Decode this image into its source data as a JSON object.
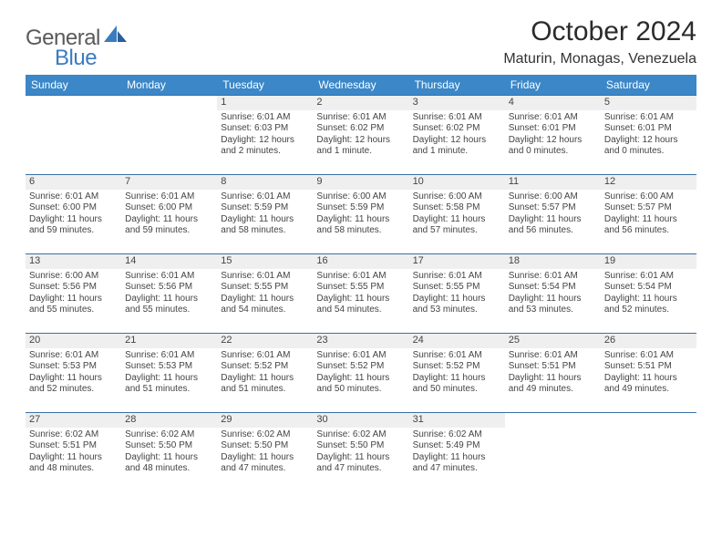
{
  "logo": {
    "text1": "General",
    "text2": "Blue"
  },
  "title": "October 2024",
  "subtitle": "Maturin, Monagas, Venezuela",
  "colors": {
    "header_bg": "#3b87c8",
    "header_fg": "#ffffff",
    "week_border": "#3b6fa5",
    "daynum_bg": "#efefef",
    "text": "#444444",
    "logo_gray": "#5a5a5a",
    "logo_blue": "#3b7bbf"
  },
  "dow": [
    "Sunday",
    "Monday",
    "Tuesday",
    "Wednesday",
    "Thursday",
    "Friday",
    "Saturday"
  ],
  "weeks": [
    [
      {
        "n": "",
        "sr": "",
        "ss": "",
        "d1": "",
        "d2": ""
      },
      {
        "n": "",
        "sr": "",
        "ss": "",
        "d1": "",
        "d2": ""
      },
      {
        "n": "1",
        "sr": "Sunrise: 6:01 AM",
        "ss": "Sunset: 6:03 PM",
        "d1": "Daylight: 12 hours",
        "d2": "and 2 minutes."
      },
      {
        "n": "2",
        "sr": "Sunrise: 6:01 AM",
        "ss": "Sunset: 6:02 PM",
        "d1": "Daylight: 12 hours",
        "d2": "and 1 minute."
      },
      {
        "n": "3",
        "sr": "Sunrise: 6:01 AM",
        "ss": "Sunset: 6:02 PM",
        "d1": "Daylight: 12 hours",
        "d2": "and 1 minute."
      },
      {
        "n": "4",
        "sr": "Sunrise: 6:01 AM",
        "ss": "Sunset: 6:01 PM",
        "d1": "Daylight: 12 hours",
        "d2": "and 0 minutes."
      },
      {
        "n": "5",
        "sr": "Sunrise: 6:01 AM",
        "ss": "Sunset: 6:01 PM",
        "d1": "Daylight: 12 hours",
        "d2": "and 0 minutes."
      }
    ],
    [
      {
        "n": "6",
        "sr": "Sunrise: 6:01 AM",
        "ss": "Sunset: 6:00 PM",
        "d1": "Daylight: 11 hours",
        "d2": "and 59 minutes."
      },
      {
        "n": "7",
        "sr": "Sunrise: 6:01 AM",
        "ss": "Sunset: 6:00 PM",
        "d1": "Daylight: 11 hours",
        "d2": "and 59 minutes."
      },
      {
        "n": "8",
        "sr": "Sunrise: 6:01 AM",
        "ss": "Sunset: 5:59 PM",
        "d1": "Daylight: 11 hours",
        "d2": "and 58 minutes."
      },
      {
        "n": "9",
        "sr": "Sunrise: 6:00 AM",
        "ss": "Sunset: 5:59 PM",
        "d1": "Daylight: 11 hours",
        "d2": "and 58 minutes."
      },
      {
        "n": "10",
        "sr": "Sunrise: 6:00 AM",
        "ss": "Sunset: 5:58 PM",
        "d1": "Daylight: 11 hours",
        "d2": "and 57 minutes."
      },
      {
        "n": "11",
        "sr": "Sunrise: 6:00 AM",
        "ss": "Sunset: 5:57 PM",
        "d1": "Daylight: 11 hours",
        "d2": "and 56 minutes."
      },
      {
        "n": "12",
        "sr": "Sunrise: 6:00 AM",
        "ss": "Sunset: 5:57 PM",
        "d1": "Daylight: 11 hours",
        "d2": "and 56 minutes."
      }
    ],
    [
      {
        "n": "13",
        "sr": "Sunrise: 6:00 AM",
        "ss": "Sunset: 5:56 PM",
        "d1": "Daylight: 11 hours",
        "d2": "and 55 minutes."
      },
      {
        "n": "14",
        "sr": "Sunrise: 6:01 AM",
        "ss": "Sunset: 5:56 PM",
        "d1": "Daylight: 11 hours",
        "d2": "and 55 minutes."
      },
      {
        "n": "15",
        "sr": "Sunrise: 6:01 AM",
        "ss": "Sunset: 5:55 PM",
        "d1": "Daylight: 11 hours",
        "d2": "and 54 minutes."
      },
      {
        "n": "16",
        "sr": "Sunrise: 6:01 AM",
        "ss": "Sunset: 5:55 PM",
        "d1": "Daylight: 11 hours",
        "d2": "and 54 minutes."
      },
      {
        "n": "17",
        "sr": "Sunrise: 6:01 AM",
        "ss": "Sunset: 5:55 PM",
        "d1": "Daylight: 11 hours",
        "d2": "and 53 minutes."
      },
      {
        "n": "18",
        "sr": "Sunrise: 6:01 AM",
        "ss": "Sunset: 5:54 PM",
        "d1": "Daylight: 11 hours",
        "d2": "and 53 minutes."
      },
      {
        "n": "19",
        "sr": "Sunrise: 6:01 AM",
        "ss": "Sunset: 5:54 PM",
        "d1": "Daylight: 11 hours",
        "d2": "and 52 minutes."
      }
    ],
    [
      {
        "n": "20",
        "sr": "Sunrise: 6:01 AM",
        "ss": "Sunset: 5:53 PM",
        "d1": "Daylight: 11 hours",
        "d2": "and 52 minutes."
      },
      {
        "n": "21",
        "sr": "Sunrise: 6:01 AM",
        "ss": "Sunset: 5:53 PM",
        "d1": "Daylight: 11 hours",
        "d2": "and 51 minutes."
      },
      {
        "n": "22",
        "sr": "Sunrise: 6:01 AM",
        "ss": "Sunset: 5:52 PM",
        "d1": "Daylight: 11 hours",
        "d2": "and 51 minutes."
      },
      {
        "n": "23",
        "sr": "Sunrise: 6:01 AM",
        "ss": "Sunset: 5:52 PM",
        "d1": "Daylight: 11 hours",
        "d2": "and 50 minutes."
      },
      {
        "n": "24",
        "sr": "Sunrise: 6:01 AM",
        "ss": "Sunset: 5:52 PM",
        "d1": "Daylight: 11 hours",
        "d2": "and 50 minutes."
      },
      {
        "n": "25",
        "sr": "Sunrise: 6:01 AM",
        "ss": "Sunset: 5:51 PM",
        "d1": "Daylight: 11 hours",
        "d2": "and 49 minutes."
      },
      {
        "n": "26",
        "sr": "Sunrise: 6:01 AM",
        "ss": "Sunset: 5:51 PM",
        "d1": "Daylight: 11 hours",
        "d2": "and 49 minutes."
      }
    ],
    [
      {
        "n": "27",
        "sr": "Sunrise: 6:02 AM",
        "ss": "Sunset: 5:51 PM",
        "d1": "Daylight: 11 hours",
        "d2": "and 48 minutes."
      },
      {
        "n": "28",
        "sr": "Sunrise: 6:02 AM",
        "ss": "Sunset: 5:50 PM",
        "d1": "Daylight: 11 hours",
        "d2": "and 48 minutes."
      },
      {
        "n": "29",
        "sr": "Sunrise: 6:02 AM",
        "ss": "Sunset: 5:50 PM",
        "d1": "Daylight: 11 hours",
        "d2": "and 47 minutes."
      },
      {
        "n": "30",
        "sr": "Sunrise: 6:02 AM",
        "ss": "Sunset: 5:50 PM",
        "d1": "Daylight: 11 hours",
        "d2": "and 47 minutes."
      },
      {
        "n": "31",
        "sr": "Sunrise: 6:02 AM",
        "ss": "Sunset: 5:49 PM",
        "d1": "Daylight: 11 hours",
        "d2": "and 47 minutes."
      },
      {
        "n": "",
        "sr": "",
        "ss": "",
        "d1": "",
        "d2": ""
      },
      {
        "n": "",
        "sr": "",
        "ss": "",
        "d1": "",
        "d2": ""
      }
    ]
  ]
}
